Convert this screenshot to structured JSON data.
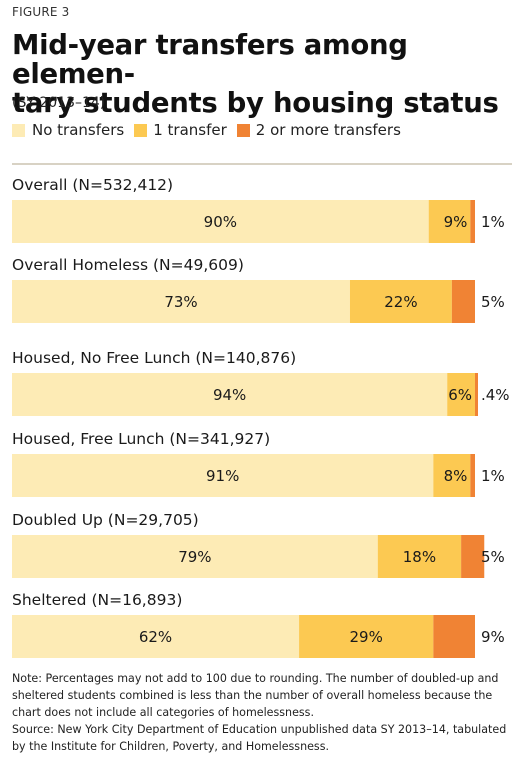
{
  "figure_label": "FIGURE 3",
  "title": "Mid-year transfers among elemen-tary students by housing status",
  "title_line1": "Mid-year transfers among elemen-",
  "title_line2": "tary students by housing status",
  "subtitle": "(SY 2013–14)",
  "colors": {
    "no_transfers": "#fdebb5",
    "one_transfer": "#fcc952",
    "two_plus": "#f08334"
  },
  "chart_data": {
    "type": "bar",
    "orientation": "horizontal",
    "stacked": true,
    "title": "Mid-year transfers among elemen-tary students by housing status",
    "subtitle": "(SY 2013–14)",
    "xlim": [
      0,
      100
    ],
    "unit": "%",
    "legend_position": "top-left",
    "grid": false,
    "categories": [
      "Overall (N=532,412)",
      "Overall Homeless (N=49,609)",
      "Housed, No Free Lunch (N=140,876)",
      "Housed, Free Lunch (N=341,927)",
      "Doubled Up (N=29,705)",
      "Sheltered (N=16,893)"
    ],
    "series": [
      {
        "name": "No transfers",
        "values": [
          90,
          73,
          94,
          91,
          79,
          62
        ],
        "labels": [
          "90%",
          "73%",
          "94%",
          "91%",
          "79%",
          "62%"
        ]
      },
      {
        "name": "1 transfer",
        "values": [
          9,
          22,
          6,
          8,
          18,
          29
        ],
        "labels": [
          "9%",
          "22%",
          "6%",
          "8%",
          "18%",
          "29%"
        ]
      },
      {
        "name": "2 or more transfers",
        "values": [
          1,
          5,
          0.4,
          1,
          5,
          9
        ],
        "labels": [
          "1%",
          "5%",
          ".4%",
          "1%",
          "5%",
          "9%"
        ]
      }
    ]
  },
  "note": "Note: Percentages may not add to 100 due to rounding. The number of doubled-up and sheltered students combined is less than the number of overall homeless because the chart does not include all categories of homelessness.",
  "source": "Source: New York City Department of Education unpublished data SY 2013–14, tabulated by the Institute for Children, Poverty, and Homelessness."
}
